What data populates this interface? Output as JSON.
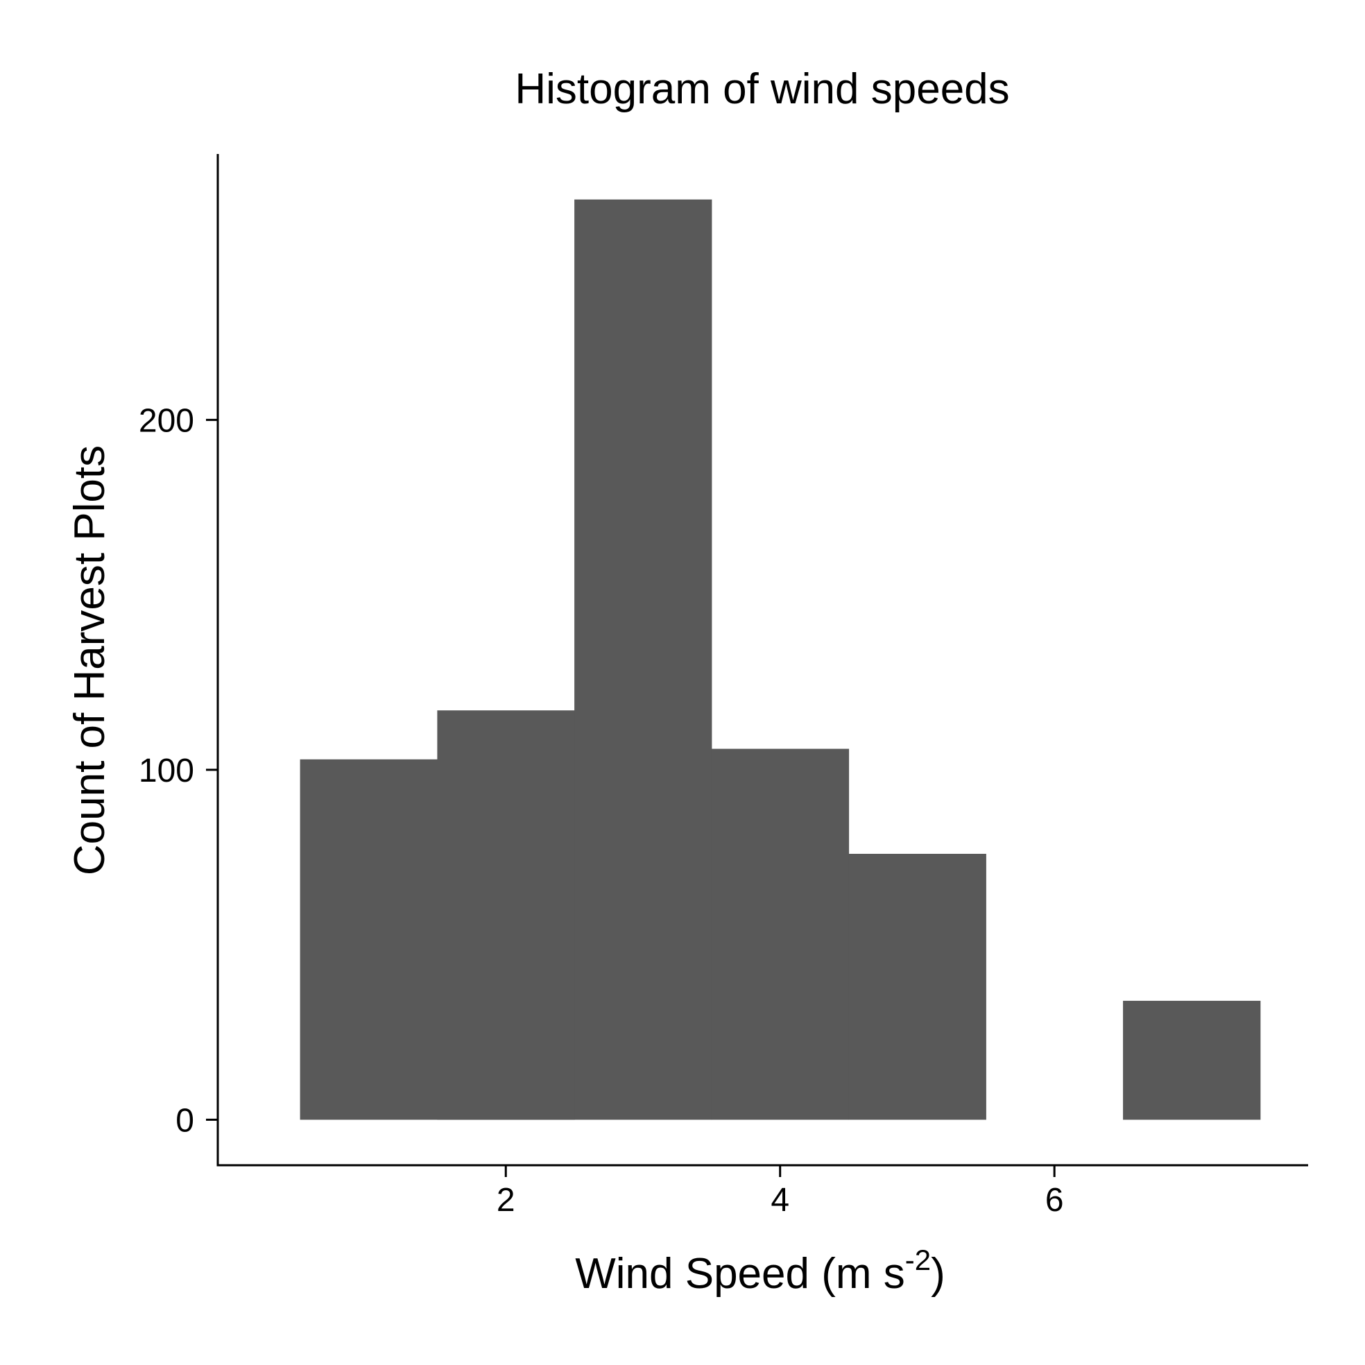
{
  "chart_data": {
    "type": "bar",
    "subtype": "histogram",
    "title": "Histogram of wind speeds",
    "xlabel": {
      "main": "Wind Speed (m s",
      "superscript": "-2",
      "close": ")"
    },
    "ylabel": "Count of Harvest Plots",
    "bins": [
      {
        "x0": 0.5,
        "x1": 1.5,
        "count": 103
      },
      {
        "x0": 1.5,
        "x1": 2.5,
        "count": 117
      },
      {
        "x0": 2.5,
        "x1": 3.5,
        "count": 263
      },
      {
        "x0": 3.5,
        "x1": 4.5,
        "count": 106
      },
      {
        "x0": 4.5,
        "x1": 5.5,
        "count": 76
      },
      {
        "x0": 5.5,
        "x1": 6.5,
        "count": 0
      },
      {
        "x0": 6.5,
        "x1": 7.5,
        "count": 34
      }
    ],
    "x_ticks": [
      2,
      4,
      6
    ],
    "y_ticks": [
      0,
      100,
      200
    ],
    "xlim": [
      -0.1,
      7.85
    ],
    "ylim": [
      -13,
      276
    ],
    "bar_color": "#595959",
    "axis_color": "#000000",
    "grid": false,
    "legend": "none"
  }
}
